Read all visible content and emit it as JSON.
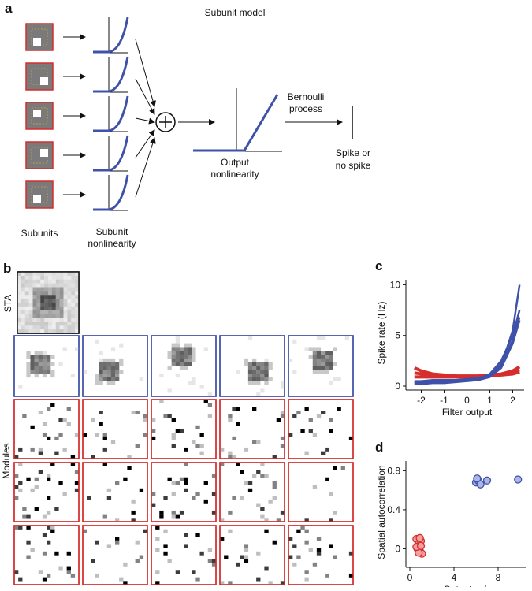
{
  "diagram": {
    "label": "a",
    "title": "Subunit model",
    "subunits": [
      "Subunits"
    ],
    "subunit_nonlinearity": [
      "Subunit",
      "nonlinearity"
    ],
    "output_nonlinearity": [
      "Output",
      "nonlinearity"
    ],
    "process": [
      "Bernoulli",
      "process"
    ],
    "outcome": [
      "Spike or",
      "no spike"
    ]
  },
  "panel_b": {
    "label": "b",
    "sta": "STA",
    "modules": "Modules"
  },
  "chart_data": [
    {
      "type": "line",
      "label": "c",
      "x_label": "Filter output",
      "y_label": "Spike rate (Hz)",
      "x": [
        -2.3,
        -2,
        -1.5,
        -1,
        -0.5,
        0,
        0.5,
        1,
        1.5,
        2,
        2.3
      ],
      "xlim": [
        -2.5,
        2.5
      ],
      "xticks": [
        -2,
        -1,
        0,
        1,
        2
      ],
      "ylim": [
        0,
        10.5
      ],
      "yticks": [
        0,
        5,
        10
      ],
      "series": [
        {
          "color": "#d62d2d",
          "values": [
            1.8,
            1.5,
            1.2,
            1.1,
            1.0,
            0.9,
            0.9,
            1.0,
            1.2,
            1.5,
            1.9
          ]
        },
        {
          "color": "#d62d2d",
          "values": [
            1.3,
            1.2,
            1.1,
            1.0,
            1.0,
            1.0,
            1.0,
            1.1,
            1.2,
            1.4,
            1.6
          ]
        },
        {
          "color": "#d62d2d",
          "values": [
            0.9,
            0.9,
            0.9,
            0.9,
            0.9,
            0.9,
            0.9,
            1.0,
            1.1,
            1.2,
            1.4
          ]
        },
        {
          "color": "#3f51a8",
          "values": [
            0.5,
            0.5,
            0.6,
            0.6,
            0.6,
            0.7,
            0.8,
            1.0,
            2.0,
            5.5,
            10
          ]
        },
        {
          "color": "#3f51a8",
          "values": [
            0.3,
            0.3,
            0.4,
            0.4,
            0.5,
            0.6,
            0.7,
            1.2,
            2.5,
            5.0,
            7.5
          ]
        },
        {
          "color": "#3f51a8",
          "values": [
            0.4,
            0.4,
            0.4,
            0.5,
            0.6,
            0.6,
            0.8,
            1.1,
            2.2,
            4.5,
            6.8
          ]
        },
        {
          "color": "#3f51a8",
          "values": [
            0.2,
            0.2,
            0.3,
            0.3,
            0.4,
            0.5,
            0.6,
            0.9,
            1.8,
            4.2,
            6.5
          ]
        }
      ]
    },
    {
      "type": "scatter",
      "label": "d",
      "x_label": "Output gain",
      "y_label": "Spatial autocorrelation",
      "xlim": [
        0,
        10.5
      ],
      "xticks": [
        0,
        4,
        8
      ],
      "ylim": [
        -0.15,
        0.9
      ],
      "yticks": [
        0,
        0.4,
        0.8
      ],
      "series": [
        {
          "color": "#d62d2d",
          "fill": "#f2a0a0",
          "x": [
            0.6,
            0.8,
            1.0,
            0.7,
            0.9,
            1.1,
            0.8,
            0.6,
            1.0,
            0.9
          ],
          "values": [
            0.1,
            0.05,
            0.08,
            0,
            -0.02,
            -0.05,
            -0.04,
            0.02,
            0.03,
            0.11
          ]
        },
        {
          "color": "#3f51a8",
          "fill": "#a9b6e6",
          "x": [
            6.0,
            6.2,
            6.4,
            7.0,
            9.8,
            6.1
          ],
          "values": [
            0.68,
            0.7,
            0.66,
            0.7,
            0.71,
            0.72
          ]
        }
      ]
    }
  ]
}
